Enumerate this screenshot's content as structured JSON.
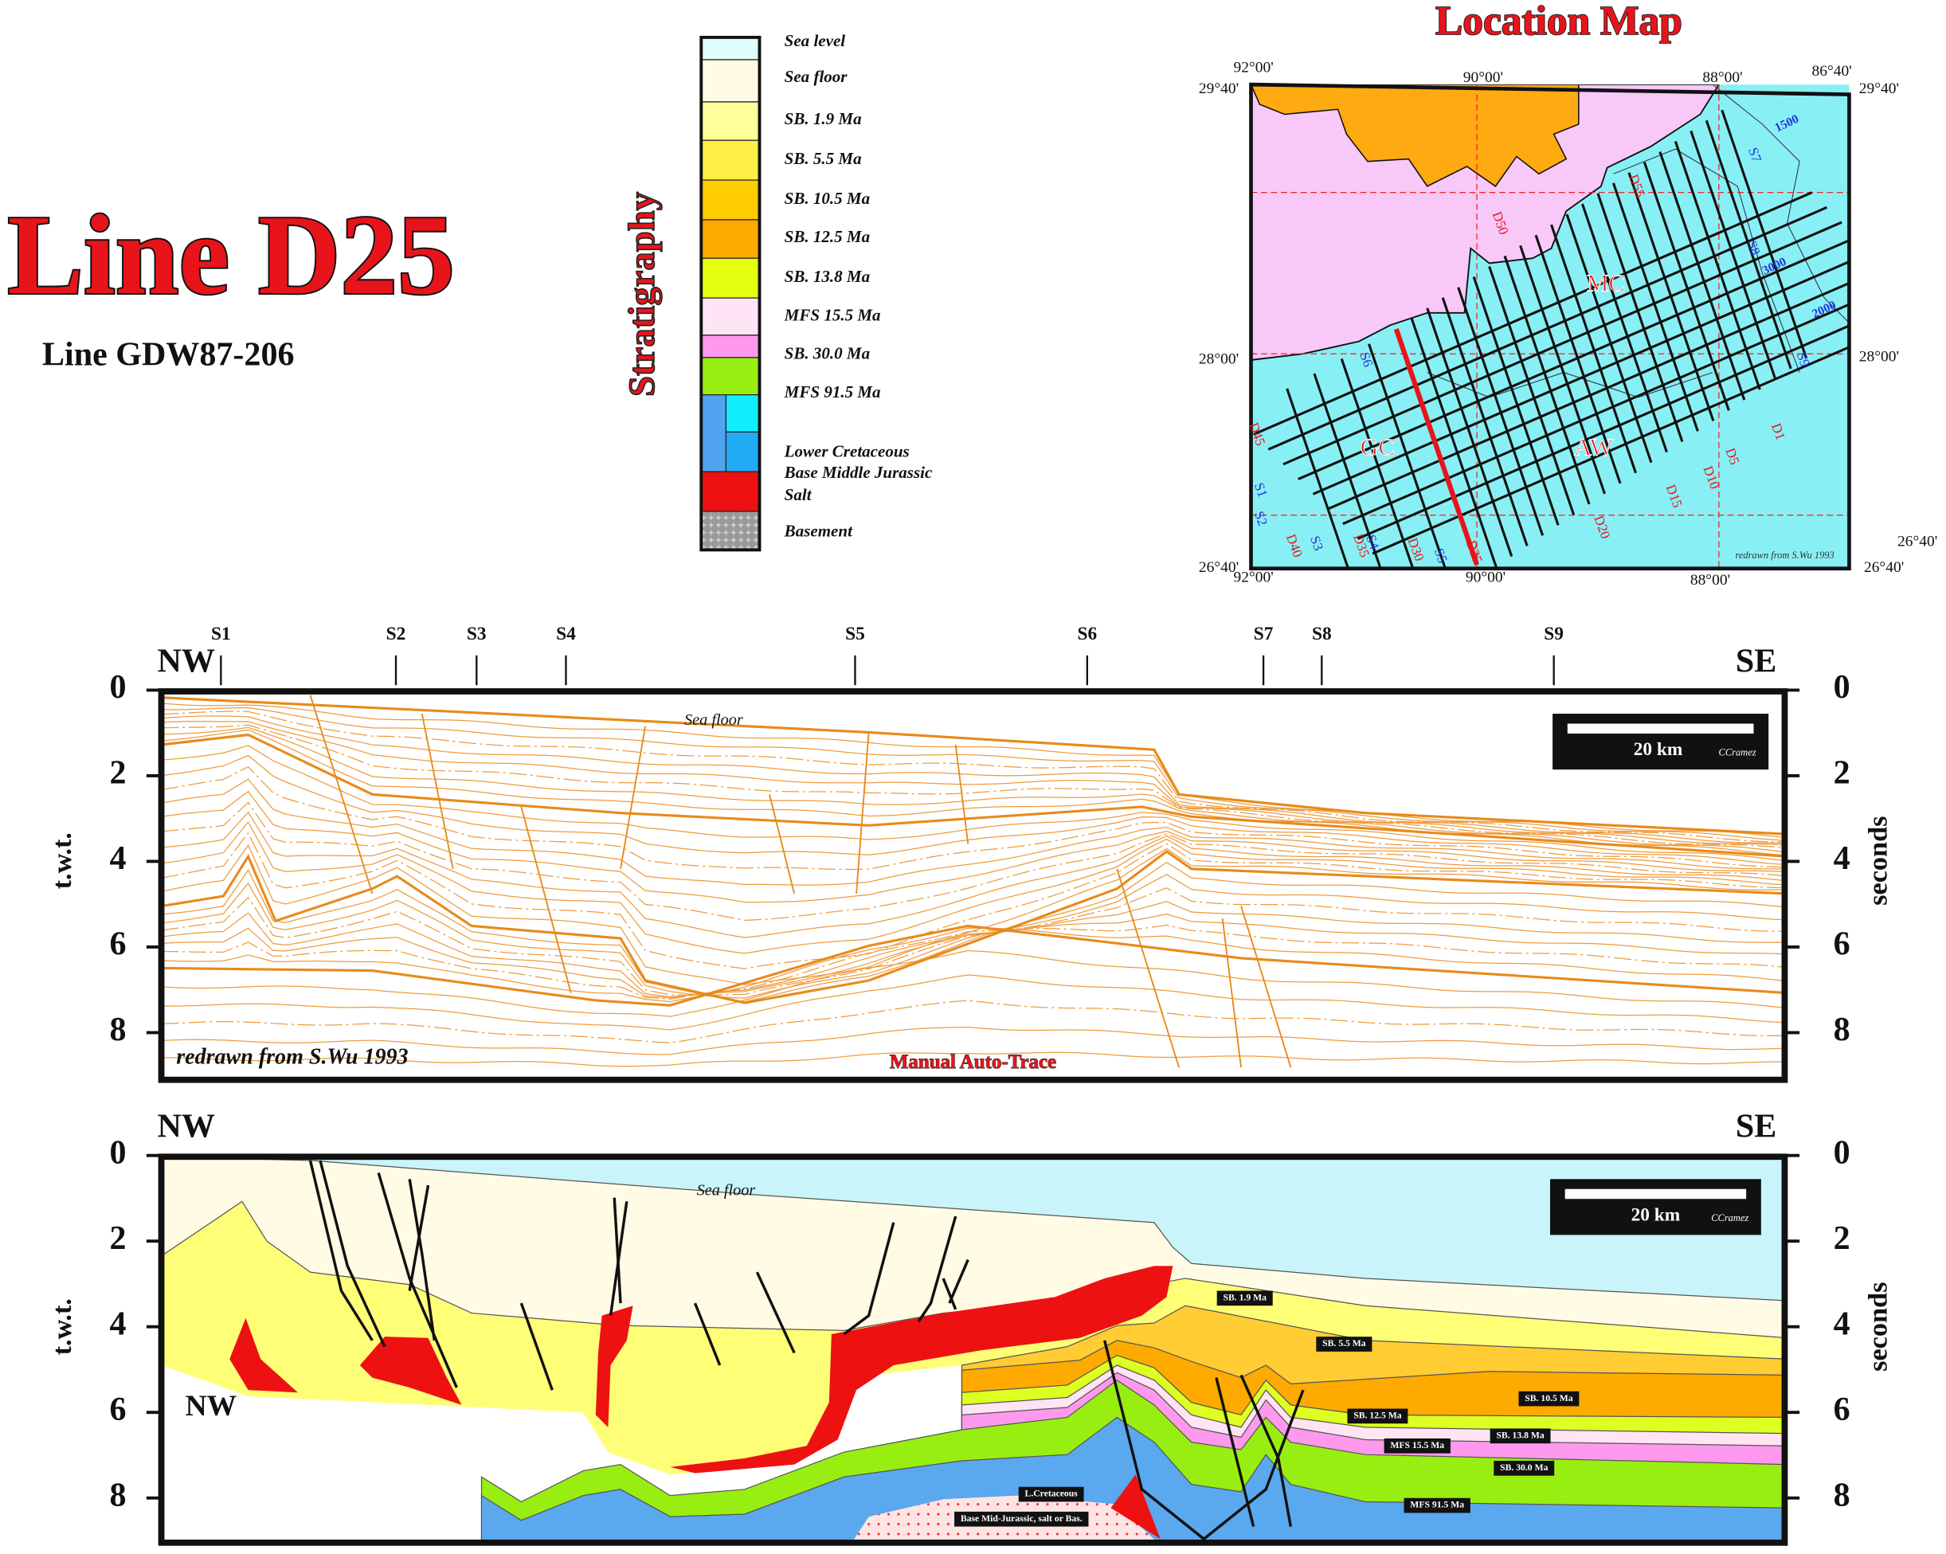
{
  "header": {
    "title": "Line D25",
    "subtitle": "Line GDW87-206"
  },
  "stratigraphy": {
    "title": "Stratigraphy",
    "items": [
      "Sea level",
      "Sea floor",
      "SB. 1.9 Ma",
      "SB. 5.5 Ma",
      "SB. 10.5 Ma",
      "SB. 12.5 Ma",
      "SB. 13.8 Ma",
      "MFS 15.5 Ma",
      "SB. 30.0 Ma",
      "MFS 91.5 Ma",
      "Lower Cretaceous",
      "Base Middle Jurassic",
      "Salt",
      "Basement"
    ]
  },
  "map": {
    "title": "Location Map",
    "lon_labels": [
      "92°00'",
      "90°00'",
      "88°00'",
      "86°40'"
    ],
    "lat_labels": [
      "29°40'",
      "28°00'",
      "26°40'"
    ],
    "areas": [
      "MC",
      "GC",
      "AW"
    ],
    "d_lines": [
      "D1",
      "D5",
      "D10",
      "D15",
      "D20",
      "D25",
      "D30",
      "D35",
      "D40",
      "D45",
      "D50",
      "D55"
    ],
    "s_lines": [
      "S1",
      "S2",
      "S3",
      "S4",
      "S5",
      "S6",
      "S7",
      "S8",
      "S9"
    ],
    "isobaths": [
      "1500",
      "3000",
      "2000"
    ],
    "credit": "redrawn from S.Wu 1993"
  },
  "section_top": {
    "shotpoints": [
      "S1",
      "S2",
      "S3",
      "S4",
      "S5",
      "S6",
      "S7",
      "S8",
      "S9"
    ],
    "left_end": "NW",
    "right_end": "SE",
    "axis_ticks": [
      0,
      2,
      4,
      6,
      8
    ],
    "left_axis_title": "t.w.t.",
    "right_axis_title": "seconds",
    "sea_floor": "Sea floor",
    "scale": "20 km",
    "scale_credit": "CCramez",
    "credit": "redrawn from S.Wu 1993",
    "method": "Manual Auto-Trace"
  },
  "section_bottom": {
    "left_end": "NW",
    "right_end": "SE",
    "axis_ticks": [
      0,
      2,
      4,
      6,
      8
    ],
    "left_axis_title": "t.w.t.",
    "right_axis_title": "seconds",
    "sea_floor": "Sea floor",
    "scale": "20 km",
    "scale_credit": "CCramez",
    "inner_label": "NW",
    "horizon_labels": [
      "SB. 1.9 Ma",
      "SB. 5.5 Ma",
      "SB. 10.5 Ma",
      "SB. 12.5 Ma",
      "SB. 13.8 Ma",
      "MFS 15.5 Ma",
      "SB. 30.0 Ma",
      "MFS 91.5 Ma",
      "L.Cretaceous",
      "Base Mid-Jurassic, salt or Bas."
    ]
  }
}
